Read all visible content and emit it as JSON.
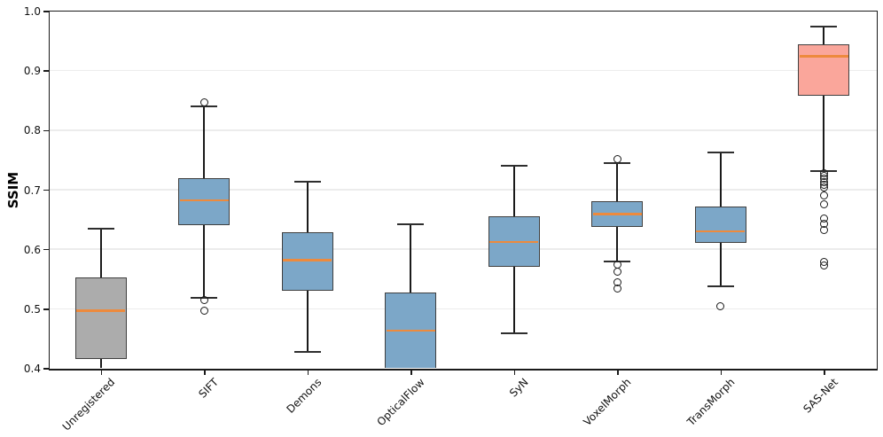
{
  "chart_data": {
    "type": "boxplot",
    "title": "",
    "xlabel": "",
    "ylabel": "SSIM",
    "ylim": [
      0.4,
      1.0
    ],
    "yticks": [
      "0.4",
      "0.5",
      "0.6",
      "0.7",
      "0.8",
      "0.9",
      "1.0"
    ],
    "grid": {
      "horizontal": true,
      "color": "#ececec"
    },
    "legend": null,
    "colors": {
      "box_blue": "#7CA7C8",
      "box_gray": "#ACACAC",
      "box_salmon": "#FAA69B",
      "median": "#ED8A3D",
      "box_edge": "#3F3F3F",
      "whisker": "#1A1A1A"
    },
    "categories": [
      "Unregistered",
      "SIFT",
      "Demons",
      "OpticalFlow",
      "SyN",
      "VoxelMorph",
      "TransMorph",
      "SAS-Net"
    ],
    "series": [
      {
        "label": "Unregistered",
        "fill": "#ACACAC",
        "whisker_high": 0.634,
        "q3": 0.552,
        "median": 0.497,
        "q1": 0.416,
        "whisker_low": 0.4,
        "whisker_low_capped": false,
        "outliers": [],
        "note": "lower whisker clipped at axis limit 0.4"
      },
      {
        "label": "SIFT",
        "fill": "#7CA7C8",
        "whisker_high": 0.84,
        "q3": 0.72,
        "median": 0.682,
        "q1": 0.64,
        "whisker_low": 0.519,
        "outliers": [
          0.847,
          0.514,
          0.497
        ]
      },
      {
        "label": "Demons",
        "fill": "#7CA7C8",
        "whisker_high": 0.713,
        "q3": 0.628,
        "median": 0.582,
        "q1": 0.531,
        "whisker_low": 0.428,
        "outliers": []
      },
      {
        "label": "OpticalFlow",
        "fill": "#7CA7C8",
        "whisker_high": 0.642,
        "q3": 0.528,
        "median": 0.463,
        "q1": 0.4,
        "q1_clipped": true,
        "whisker_low": null,
        "outliers": [],
        "note": "box bottom clipped at axis limit 0.4"
      },
      {
        "label": "SyN",
        "fill": "#7CA7C8",
        "whisker_high": 0.74,
        "q3": 0.656,
        "median": 0.612,
        "q1": 0.57,
        "whisker_low": 0.459,
        "outliers": []
      },
      {
        "label": "VoxelMorph",
        "fill": "#7CA7C8",
        "whisker_high": 0.744,
        "q3": 0.681,
        "median": 0.659,
        "q1": 0.638,
        "whisker_low": 0.58,
        "outliers": [
          0.752,
          0.574,
          0.562,
          0.545,
          0.534
        ]
      },
      {
        "label": "TransMorph",
        "fill": "#7CA7C8",
        "whisker_high": 0.763,
        "q3": 0.672,
        "median": 0.63,
        "q1": 0.611,
        "whisker_low": 0.537,
        "outliers": [
          0.504
        ]
      },
      {
        "label": "SAS-Net",
        "fill": "#FAA69B",
        "whisker_high": 0.974,
        "q3": 0.944,
        "median": 0.924,
        "q1": 0.858,
        "whisker_low": 0.731,
        "outliers": [
          0.728,
          0.723,
          0.718,
          0.713,
          0.708,
          0.703,
          0.69,
          0.676,
          0.652,
          0.642,
          0.633,
          0.578,
          0.573
        ]
      }
    ]
  }
}
